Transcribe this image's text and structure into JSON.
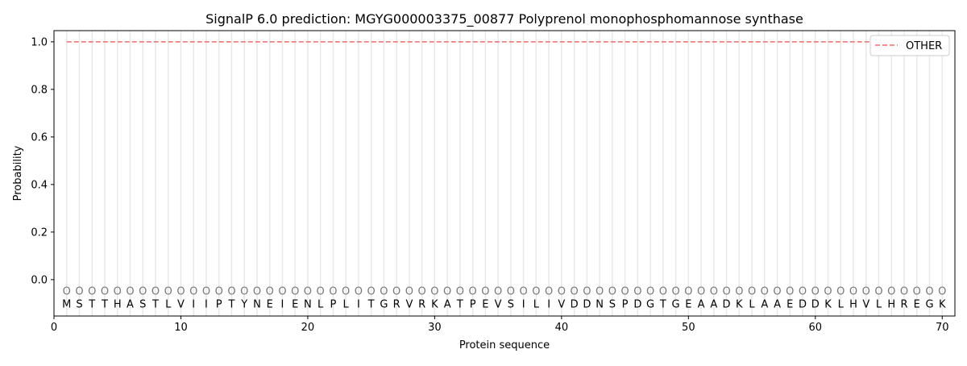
{
  "chart_data": {
    "type": "line",
    "title": "SignalP 6.0 prediction: MGYG000003375_00877 Polyprenol monophosphomannose synthase",
    "xlabel": "Protein sequence",
    "ylabel": "Probability",
    "xlim": [
      0,
      71
    ],
    "ylim": [
      -0.153,
      1.047
    ],
    "xticks": [
      0,
      10,
      20,
      30,
      40,
      50,
      60,
      70
    ],
    "yticks": [
      "0.0",
      "0.2",
      "0.4",
      "0.6",
      "0.8",
      "1.0"
    ],
    "sequence": "MSTTHASTLVIIPTYNEIENLPLITGRVRKATPEVSILIVDDNSPDGTGEAADKLAAEDDKLHVLHREGK",
    "predicted_label": "O",
    "series": [
      {
        "name": "OTHER",
        "color": "#f08080",
        "style": "dashed",
        "x_start": 1,
        "x_end": 70,
        "value": 1.0
      }
    ],
    "legend": "top-right",
    "grid": "vertical lines at each residue"
  }
}
